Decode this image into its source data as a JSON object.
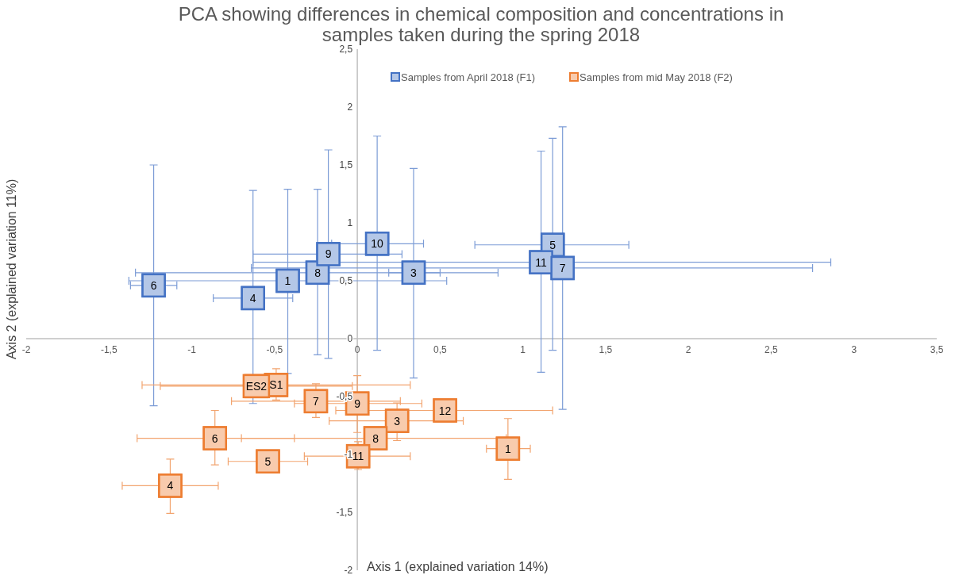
{
  "chart_data": {
    "type": "scatter",
    "title": "PCA showing differences in chemical composition and concentrations in samples taken during the spring 2018",
    "xlabel": "Axis 1 (explained variation 14%)",
    "ylabel": "Axis 2 (explained variation 11%)",
    "xlim": [
      -2,
      3.5
    ],
    "xticks": [
      -2,
      {
        "value": -1.5,
        "label": "-1,5"
      },
      -1,
      {
        "value": -0.5,
        "label": "-0,5"
      },
      0,
      {
        "value": 0.5,
        "label": "0,5"
      },
      1,
      {
        "value": 1.5,
        "label": "1,5"
      },
      2,
      {
        "value": 2.5,
        "label": "2,5"
      },
      3,
      {
        "value": 3.5,
        "label": "3,5"
      }
    ],
    "ylim": [
      -2,
      2.5
    ],
    "yticks": [
      -2,
      {
        "value": -1.5,
        "label": "-1,5"
      },
      -1,
      {
        "value": -0.5,
        "label": "-0,5"
      },
      0,
      {
        "value": 0.5,
        "label": "0,5"
      },
      1,
      {
        "value": 1.5,
        "label": "1,5"
      },
      2,
      {
        "value": 2.5,
        "label": "2,5"
      }
    ],
    "grid": false,
    "legend": "top",
    "marker": "square",
    "series": [
      {
        "name": "Samples from April 2018 (F1)",
        "color": "#4472c4",
        "x": [
          -0.42,
          -1.23,
          -0.63,
          -0.24,
          -0.175,
          0.12,
          0.34,
          1.11,
          1.24,
          1.18
        ],
        "values": [
          0.5,
          0.46,
          0.35,
          0.57,
          0.73,
          0.82,
          0.57,
          0.66,
          0.61,
          0.81
        ],
        "errors": [
          [
            -0.3,
            1.29
          ],
          [
            -0.58,
            1.5
          ],
          [
            -0.56,
            1.28
          ],
          [
            -0.14,
            1.29
          ],
          [
            -0.17,
            1.63
          ],
          [
            -0.1,
            1.75
          ],
          [
            -0.34,
            1.47
          ],
          [
            -0.29,
            1.62
          ],
          [
            -0.61,
            1.83
          ],
          [
            -0.1,
            1.73
          ]
        ],
        "xerrors": [
          [
            -1.38,
            0.54
          ],
          [
            -1.37,
            -1.09
          ],
          [
            -0.87,
            -0.39
          ],
          [
            -1.34,
            0.85
          ],
          [
            -0.63,
            0.27
          ],
          [
            -0.155,
            0.4
          ],
          [
            0.19,
            0.5
          ],
          [
            -0.63,
            2.86
          ],
          [
            -0.64,
            2.75
          ],
          [
            0.71,
            1.64
          ]
        ]
      },
      {
        "name": "Samples from mid May 2018 (F2)",
        "color": "#ed7d31",
        "x": [
          -0.49,
          -0.61,
          -0.25,
          0.0,
          0.53,
          0.24,
          0.11,
          -0.86,
          0.005,
          -0.54,
          -1.13,
          0.91
        ],
        "values": [
          -0.4,
          -0.41,
          -0.54,
          -0.56,
          -0.62,
          -0.71,
          -0.86,
          -0.86,
          -1.015,
          -1.06,
          -1.27,
          -0.95
        ],
        "errors": [
          [
            -0.53,
            -0.26
          ],
          null,
          [
            -0.68,
            -0.39
          ],
          [
            -0.81,
            -0.32
          ],
          null,
          [
            -0.88,
            -0.555
          ],
          null,
          [
            -1.09,
            -0.62
          ],
          [
            -1.13,
            -0.89
          ],
          null,
          [
            -1.51,
            -1.04
          ],
          [
            -1.215,
            -0.69
          ]
        ],
        "xerrors": [
          [
            -1.3,
            0.32
          ],
          [
            -1.19,
            -0.03
          ],
          [
            -0.76,
            0.26
          ],
          [
            -0.38,
            0.39
          ],
          [
            -0.13,
            1.18
          ],
          [
            -0.17,
            0.64
          ],
          [
            -0.7,
            0.9
          ],
          [
            -1.33,
            -0.38
          ],
          [
            -0.32,
            0.32
          ],
          [
            -0.78,
            -0.3
          ],
          [
            -1.42,
            -0.84
          ],
          [
            0.78,
            1.045
          ]
        ]
      }
    ],
    "annotations": [
      {
        "text": "1",
        "x": -0.42,
        "y": 0.5
      },
      {
        "text": "6",
        "x": -1.23,
        "y": 0.46
      },
      {
        "text": "4",
        "x": -0.63,
        "y": 0.35
      },
      {
        "text": "8",
        "x": -0.24,
        "y": 0.57
      },
      {
        "text": "9",
        "x": -0.175,
        "y": 0.73
      },
      {
        "text": "10",
        "x": 0.12,
        "y": 0.82
      },
      {
        "text": "3",
        "x": 0.34,
        "y": 0.57
      },
      {
        "text": "5",
        "x": 1.18,
        "y": 0.81
      },
      {
        "text": "11",
        "x": 1.11,
        "y": 0.66
      },
      {
        "text": "7",
        "x": 1.24,
        "y": 0.61
      },
      {
        "text": "S1",
        "x": -0.49,
        "y": -0.4
      },
      {
        "text": "ES2",
        "x": -0.61,
        "y": -0.41
      },
      {
        "text": "7",
        "x": -0.25,
        "y": -0.54
      },
      {
        "text": "9",
        "x": 0.0,
        "y": -0.56
      },
      {
        "text": "12",
        "x": 0.53,
        "y": -0.62
      },
      {
        "text": "3",
        "x": 0.24,
        "y": -0.71
      },
      {
        "text": "8",
        "x": 0.11,
        "y": -0.86
      },
      {
        "text": "6",
        "x": -0.86,
        "y": -0.86
      },
      {
        "text": "11",
        "x": 0.005,
        "y": -1.015
      },
      {
        "text": "5",
        "x": -0.54,
        "y": -1.06
      },
      {
        "text": "4",
        "x": -1.13,
        "y": -1.27
      },
      {
        "text": "1",
        "x": 0.91,
        "y": -0.95
      }
    ]
  }
}
